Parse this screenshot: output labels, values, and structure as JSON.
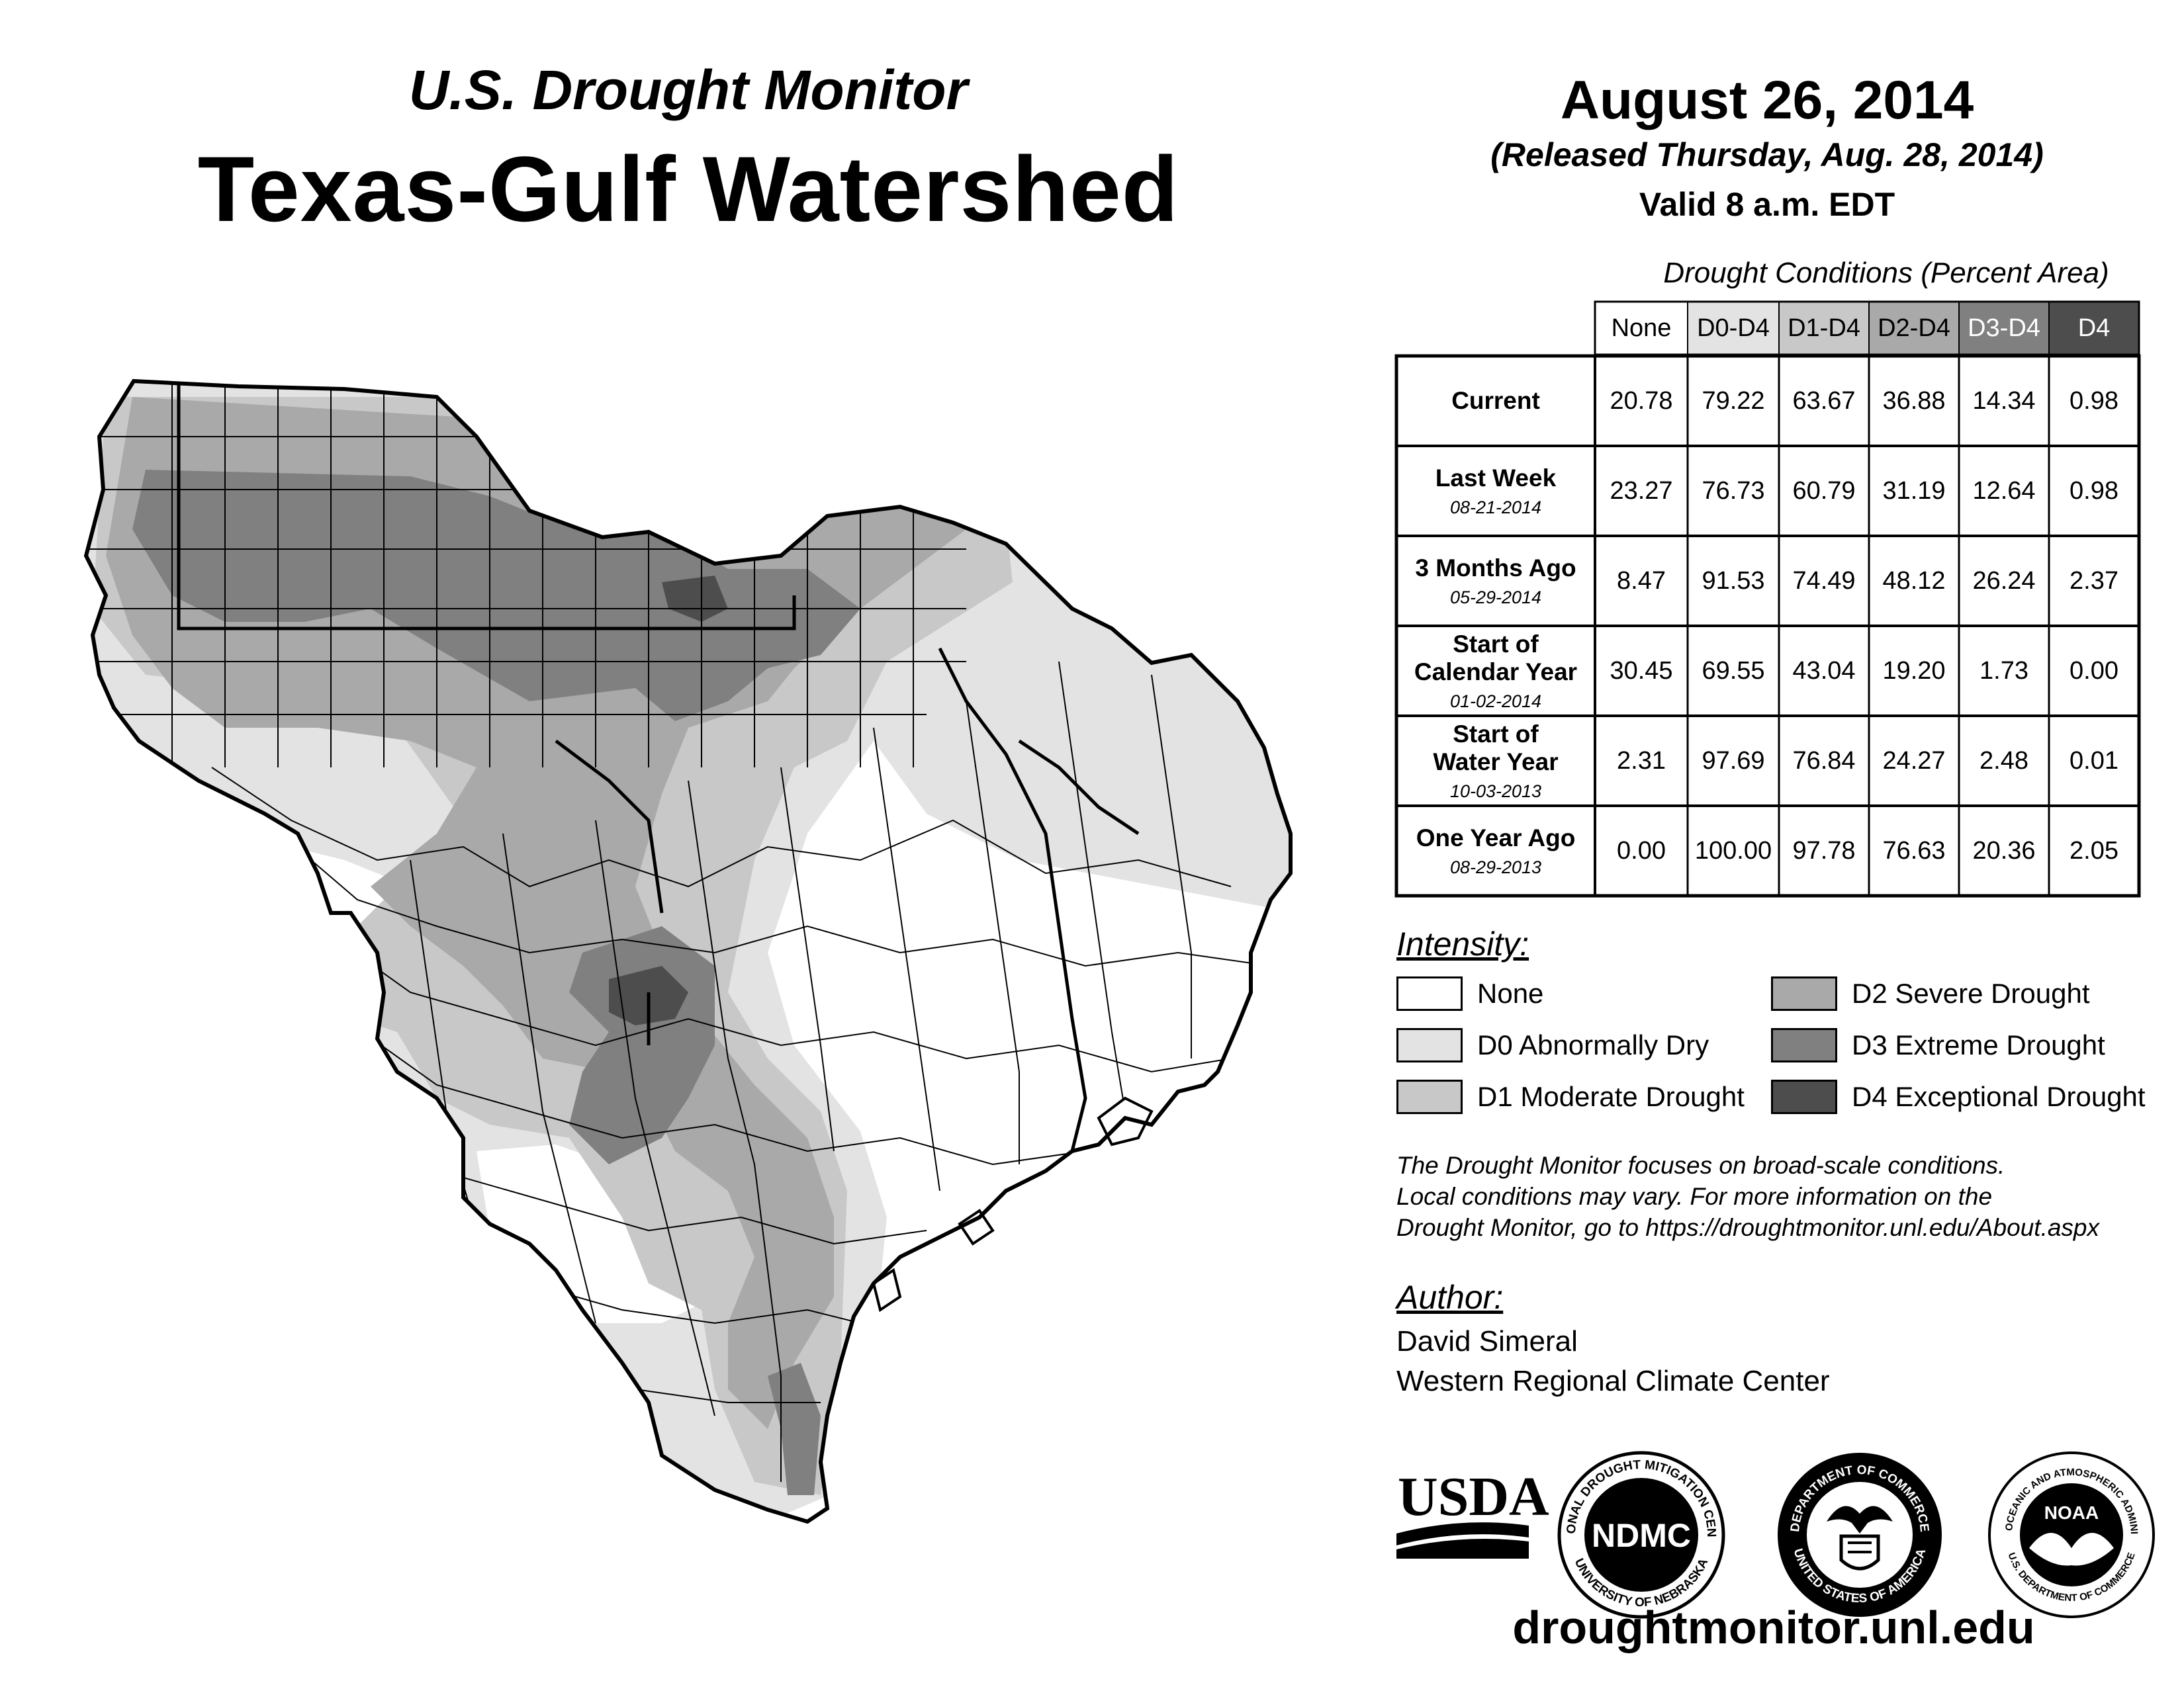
{
  "title": {
    "super": "U.S. Drought Monitor",
    "main": "Texas-Gulf Watershed"
  },
  "dateinfo": {
    "date": "August 26, 2014",
    "released": "(Released Thursday, Aug. 28, 2014)",
    "valid": "Valid 8 a.m. EDT"
  },
  "table": {
    "title": "Drought Conditions (Percent Area)",
    "columns": [
      "None",
      "D0-D4",
      "D1-D4",
      "D2-D4",
      "D3-D4",
      "D4"
    ],
    "rows": [
      {
        "label": "Current",
        "date": "",
        "values": [
          "20.78",
          "79.22",
          "63.67",
          "36.88",
          "14.34",
          "0.98"
        ]
      },
      {
        "label": "Last Week",
        "date": "08-21-2014",
        "values": [
          "23.27",
          "76.73",
          "60.79",
          "31.19",
          "12.64",
          "0.98"
        ]
      },
      {
        "label": "3 Months Ago",
        "date": "05-29-2014",
        "values": [
          "8.47",
          "91.53",
          "74.49",
          "48.12",
          "26.24",
          "2.37"
        ]
      },
      {
        "label": "Start of\nCalendar Year",
        "date": "01-02-2014",
        "values": [
          "30.45",
          "69.55",
          "43.04",
          "19.20",
          "1.73",
          "0.00"
        ]
      },
      {
        "label": "Start of\nWater Year",
        "date": "10-03-2013",
        "values": [
          "2.31",
          "97.69",
          "76.84",
          "24.27",
          "2.48",
          "0.01"
        ]
      },
      {
        "label": "One Year Ago",
        "date": "08-29-2013",
        "values": [
          "0.00",
          "100.00",
          "97.78",
          "76.63",
          "20.36",
          "2.05"
        ]
      }
    ]
  },
  "legend": {
    "title": "Intensity:",
    "items": [
      {
        "label": "None",
        "color": "#ffffff"
      },
      {
        "label": "D0 Abnormally Dry",
        "color": "#e3e3e3"
      },
      {
        "label": "D1 Moderate Drought",
        "color": "#c8c8c8"
      },
      {
        "label": "D2 Severe Drought",
        "color": "#a9a9a9"
      },
      {
        "label": "D3 Extreme Drought",
        "color": "#808080"
      },
      {
        "label": "D4 Exceptional Drought",
        "color": "#4d4d4d"
      }
    ]
  },
  "disclaimer": [
    "The Drought Monitor focuses on broad-scale conditions.",
    "Local conditions may vary. For more information on the",
    "Drought Monitor, go to https://droughtmonitor.unl.edu/About.aspx"
  ],
  "author": {
    "title": "Author:",
    "name": "David Simeral",
    "org": "Western Regional Climate Center"
  },
  "logos": {
    "usda": "USDA",
    "ndmc": "NDMC",
    "ndmc_ring": "NATIONAL DROUGHT MITIGATION CENTER",
    "ndmc_ring_bottom": "UNIVERSITY OF NEBRASKA",
    "doc_ring": "DEPARTMENT OF COMMERCE",
    "doc_ring_bottom": "UNITED STATES OF AMERICA",
    "noaa": "NOAA",
    "noaa_ring": "NATIONAL OCEANIC AND ATMOSPHERIC ADMINISTRATION",
    "noaa_ring_bottom": "U.S. DEPARTMENT OF COMMERCE"
  },
  "url": "droughtmonitor.unl.edu",
  "colors": {
    "none": "#ffffff",
    "d0": "#e3e3e3",
    "d1": "#c8c8c8",
    "d2": "#a9a9a9",
    "d3": "#808080",
    "d4": "#4d4d4d"
  }
}
